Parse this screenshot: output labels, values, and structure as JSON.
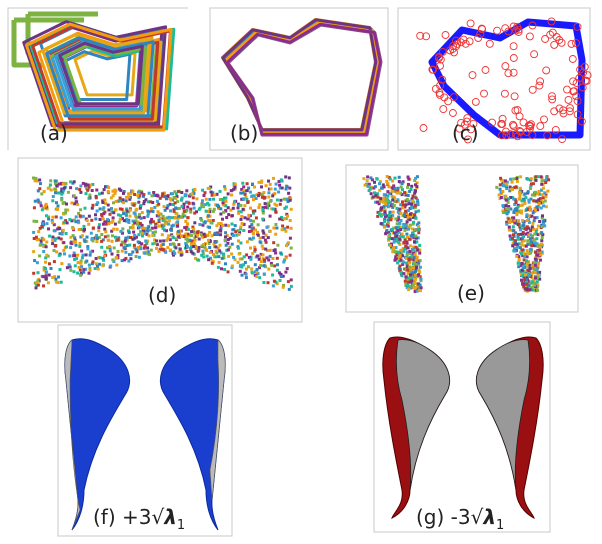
{
  "panels": [
    {
      "label": "(a)"
    },
    {
      "label": "(b)"
    },
    {
      "label": "(c)"
    },
    {
      "label": "(d)"
    },
    {
      "label": "(e)"
    },
    {
      "label": {
        "prefix": "(f) +3√",
        "symbol": "λ",
        "subscript": "1"
      }
    },
    {
      "label": {
        "prefix": "(g) -3√",
        "symbol": "λ",
        "subscript": "1"
      }
    }
  ]
}
